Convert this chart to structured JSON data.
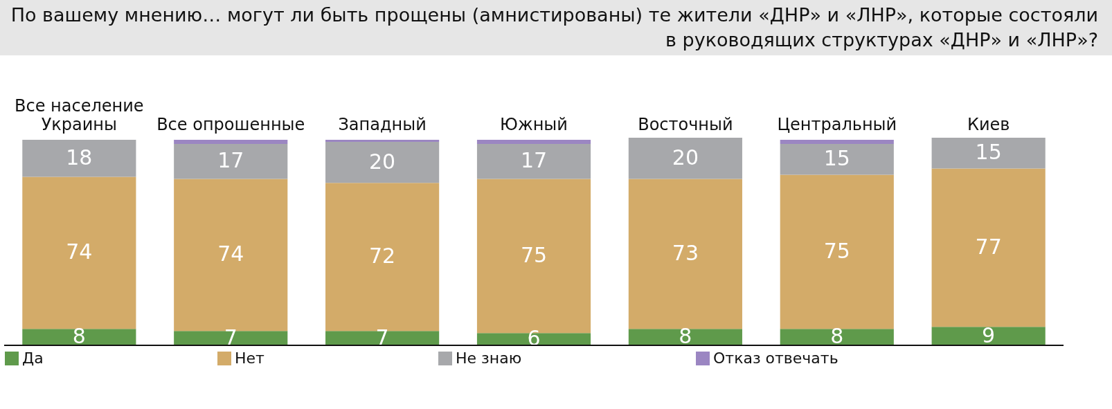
{
  "chart_data": {
    "type": "bar",
    "stacked": true,
    "title": "По вашему мнению… могут ли быть прощены (амнистированы) те жители «ДНР» и «ЛНР», которые состояли в руководящих структурах «ДНР» и «ЛНР»?",
    "categories": [
      "Все население Украины",
      "Все опрошенные",
      "Западный",
      "Южный",
      "Восточный",
      "Центральный",
      "Киев"
    ],
    "legend": "bottom",
    "series": [
      {
        "name": "Да",
        "color": "#5f9a4b",
        "values": [
          8,
          7,
          7,
          6,
          8,
          8,
          9
        ],
        "value_labels": [
          "8",
          "7",
          "7",
          "6",
          "8",
          "8",
          "9"
        ]
      },
      {
        "name": "Нет",
        "color": "#d3ab69",
        "values": [
          74,
          74,
          72,
          75,
          73,
          75,
          77
        ],
        "value_labels": [
          "74",
          "74",
          "72",
          "75",
          "73",
          "75",
          "77"
        ]
      },
      {
        "name": "Не знаю",
        "color": "#a7a8ab",
        "values": [
          18,
          17,
          20,
          17,
          20,
          15,
          15
        ],
        "value_labels": [
          "18",
          "17",
          "20",
          "17",
          "20",
          "15",
          "15"
        ]
      },
      {
        "name": "Отказ отвечать",
        "color": "#9b86c2",
        "values": [
          null,
          2,
          1,
          2,
          null,
          2,
          null
        ]
      }
    ]
  }
}
